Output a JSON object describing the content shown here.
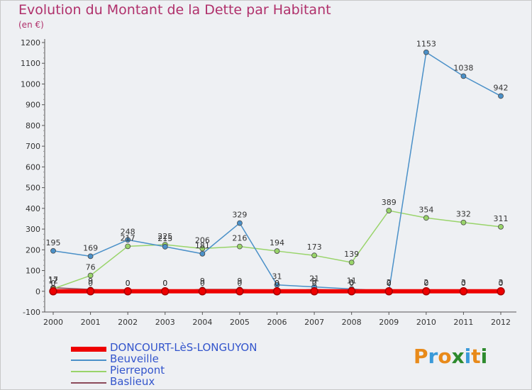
{
  "chart": {
    "title": "Evolution du Montant de la Dette par Habitant",
    "subtitle": "(en €)",
    "logo": "Proxiti"
  },
  "colors": {
    "title": "#b0306b",
    "axis_text": "#333333",
    "legend_text": "#3355cc",
    "background": "#eef0f3"
  },
  "chart_data": {
    "type": "line",
    "title": "Evolution du Montant de la Dette par Habitant",
    "subtitle": "(en €)",
    "xlabel": "",
    "ylabel": "",
    "x": [
      "2000",
      "2001",
      "2002",
      "2003",
      "2004",
      "2005",
      "2006",
      "2007",
      "2008",
      "2009",
      "2010",
      "2011",
      "2012"
    ],
    "ylim": [
      -100,
      1200
    ],
    "yticks": [
      -100,
      0,
      100,
      200,
      300,
      400,
      500,
      600,
      700,
      800,
      900,
      1000,
      1100,
      1200
    ],
    "grid": false,
    "legend_position": "bottom-left",
    "series": [
      {
        "name": "DONCOURT-LèS-LONGUYON",
        "color": "#ee0000",
        "values": [
          0,
          0,
          0,
          0,
          0,
          0,
          0,
          0,
          0,
          0,
          0,
          0,
          0
        ],
        "labels": [
          "0",
          "0",
          "0",
          "0",
          "0",
          "0",
          "0",
          "0",
          "0",
          "0",
          "0",
          "0",
          "0"
        ]
      },
      {
        "name": "Beuveille",
        "color": "#4a90c8",
        "values": [
          195,
          169,
          248,
          215,
          181,
          329,
          31,
          21,
          11,
          0,
          1153,
          1038,
          942
        ],
        "labels": [
          "195",
          "169",
          "248",
          "215",
          "181",
          "329",
          "31",
          "21",
          "11",
          "0",
          "1153",
          "1038",
          "942"
        ]
      },
      {
        "name": "Pierrepont",
        "color": "#99d46a",
        "values": [
          12,
          76,
          217,
          225,
          206,
          216,
          194,
          173,
          139,
          389,
          354,
          332,
          311
        ],
        "labels": [
          "12",
          "76",
          "217",
          "225",
          "206",
          "216",
          "194",
          "173",
          "139",
          "389",
          "354",
          "332",
          "311"
        ]
      },
      {
        "name": "Baslieux",
        "color": "#8b4a5a",
        "values": [
          17,
          9,
          0,
          0,
          9,
          9,
          0,
          9,
          3,
          2,
          2,
          3,
          3
        ],
        "labels": [
          "17",
          "9",
          "0",
          "0",
          "9",
          "9",
          "0",
          "9",
          "3",
          "2",
          "2",
          "3",
          "3"
        ]
      }
    ]
  }
}
